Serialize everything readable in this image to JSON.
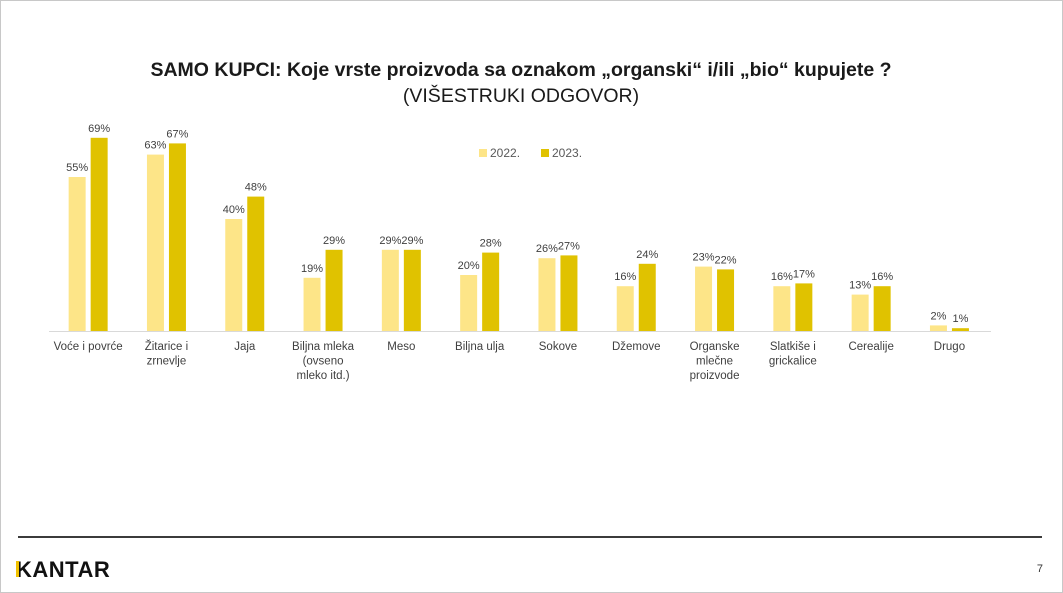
{
  "colors": {
    "series_2022": "#fde588",
    "series_2023": "#e0c200",
    "axis_line": "#d9d9d9",
    "label_text": "#404040",
    "brand_accent": "#f2c200"
  },
  "header": {
    "title": "SAMO KUPCI: Koje vrste proizvoda sa oznakom „organski“ i/ili „bio“ kupujete ?",
    "subtitle": "(VIŠESTRUKI ODGOVOR)"
  },
  "chart_data": {
    "type": "bar",
    "title": "SAMO KUPCI: Koje vrste proizvoda sa oznakom „organski“ i/ili „bio“ kupujete ?",
    "subtitle": "(VIŠESTRUKI ODGOVOR)",
    "categories": [
      [
        "Voće i povrće"
      ],
      [
        "Žitarice i",
        "zrnevlje"
      ],
      [
        "Jaja"
      ],
      [
        "Biljna mleka",
        "(ovseno",
        "mleko itd.)"
      ],
      [
        "Meso"
      ],
      [
        "Biljna ulja"
      ],
      [
        "Sokove"
      ],
      [
        "Džemove"
      ],
      [
        "Organske",
        "mlečne",
        "proizvode"
      ],
      [
        "Slatkiše i",
        "grickalice"
      ],
      [
        "Cerealije"
      ],
      [
        "Drugo"
      ]
    ],
    "series": [
      {
        "name": "2022.",
        "color": "#fde588",
        "values": [
          55,
          63,
          40,
          19,
          29,
          20,
          26,
          16,
          23,
          16,
          13,
          2
        ],
        "labels": [
          "55%",
          "63%",
          "40%",
          "19%",
          "29%",
          "20%",
          "26%",
          "16%",
          "23%",
          "16%",
          "13%",
          "2%"
        ]
      },
      {
        "name": "2023.",
        "color": "#e0c200",
        "values": [
          69,
          67,
          48,
          29,
          29,
          28,
          27,
          24,
          22,
          17,
          16,
          1
        ],
        "labels": [
          "69%",
          "67%",
          "48%",
          "29%",
          "29%",
          "28%",
          "27%",
          "24%",
          "22%",
          "17%",
          "16%",
          "1%"
        ]
      }
    ],
    "ylim": [
      0,
      100
    ],
    "grid": false,
    "legend_position": "top-center",
    "xlabel": "",
    "ylabel": ""
  },
  "footer": {
    "logo_text": "KANTAR",
    "page_number": "7"
  }
}
